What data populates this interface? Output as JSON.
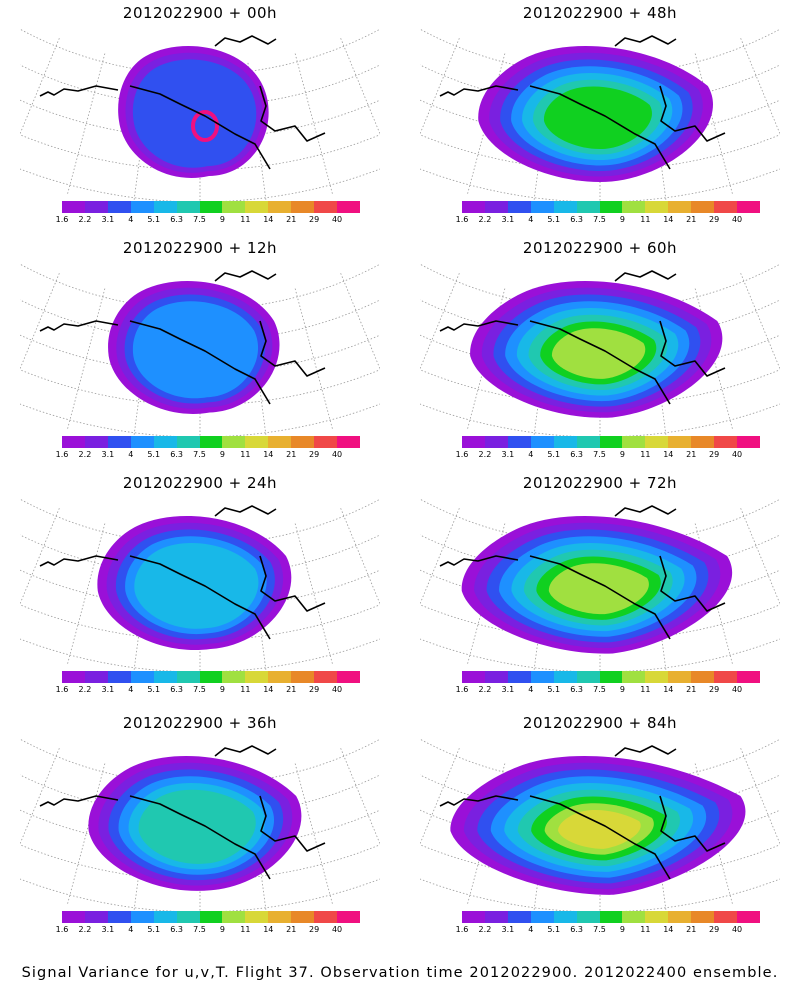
{
  "panels": [
    {
      "title": "2012022900 + 00h",
      "level": 0.0
    },
    {
      "title": "2012022900 + 48h",
      "level": 0.55
    },
    {
      "title": "2012022900 + 12h",
      "level": 0.15
    },
    {
      "title": "2012022900 + 60h",
      "level": 0.65
    },
    {
      "title": "2012022900 + 24h",
      "level": 0.3
    },
    {
      "title": "2012022900 + 72h",
      "level": 0.75
    },
    {
      "title": "2012022900 + 36h",
      "level": 0.42
    },
    {
      "title": "2012022900 + 84h",
      "level": 0.88
    }
  ],
  "colorbar": {
    "labels": [
      "1.6",
      "2.2",
      "3.1",
      "4",
      "5.1",
      "6.3",
      "7.5",
      "9",
      "11",
      "14",
      "21",
      "29",
      "40"
    ],
    "colors": [
      "#9a10d8",
      "#7a20e0",
      "#3050f0",
      "#1e90ff",
      "#18b8e8",
      "#20c8b0",
      "#10d020",
      "#a0e040",
      "#d8d838",
      "#e8b030",
      "#e88828",
      "#f04848",
      "#f01080"
    ]
  },
  "caption": "Signal Variance for u,v,T. Flight 37. Observation time 2012022900. 2012022400 ensemble."
}
